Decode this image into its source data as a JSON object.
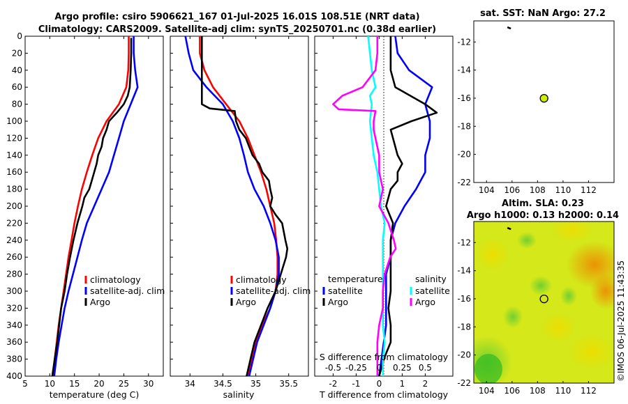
{
  "header": {
    "title_line1": "Argo profile: csiro 5906621_167 01-Jul-2025 16.01S 108.51E (NRT data)",
    "title_line2": "Climatology: CARS2009. Satellite-adj clim: synTS_20250701.nc (0.38d earlier)"
  },
  "colors": {
    "climatology": "#ff0000",
    "satellite": "#0000ff",
    "argo": "#000000",
    "salinity_satellite": "#00ffff",
    "salinity_argo": "#ff00ff",
    "marker": "#ccee00"
  },
  "chart_data": [
    {
      "id": "temperature",
      "type": "line",
      "xlabel": "temperature (deg C)",
      "ylabel": "depth",
      "xlim": [
        5,
        33
      ],
      "ylim": [
        400,
        0
      ],
      "xticks": [
        "5",
        "10",
        "15",
        "20",
        "25",
        "30"
      ],
      "yticks": [
        "0",
        "20",
        "40",
        "60",
        "80",
        "100",
        "120",
        "140",
        "160",
        "180",
        "200",
        "220",
        "240",
        "260",
        "280",
        "300",
        "320",
        "340",
        "360",
        "380",
        "400"
      ],
      "legend": [
        "climatology",
        "satellite-adj. clim",
        "Argo"
      ],
      "series": [
        {
          "name": "climatology",
          "depth": [
            0,
            20,
            40,
            60,
            80,
            100,
            120,
            140,
            160,
            180,
            200,
            220,
            240,
            260,
            280,
            300,
            320,
            340,
            360,
            380,
            400
          ],
          "values": [
            26.0,
            26.0,
            25.9,
            25.5,
            24.0,
            21.5,
            19.8,
            18.6,
            17.5,
            16.5,
            15.7,
            15.0,
            14.4,
            13.8,
            13.3,
            12.8,
            12.3,
            11.8,
            11.4,
            11.0,
            10.7
          ]
        },
        {
          "name": "satellite-adj. clim",
          "depth": [
            0,
            20,
            40,
            60,
            80,
            100,
            120,
            140,
            160,
            180,
            200,
            220,
            240,
            260,
            280,
            300,
            320,
            340,
            360,
            380,
            400
          ],
          "values": [
            27.0,
            27.0,
            27.3,
            27.8,
            26.4,
            25.0,
            24.0,
            23.0,
            22.0,
            20.5,
            19.0,
            17.5,
            16.5,
            15.6,
            14.7,
            13.8,
            13.0,
            12.4,
            11.8,
            11.3,
            10.9
          ]
        },
        {
          "name": "Argo",
          "depth": [
            2,
            20,
            40,
            60,
            70,
            80,
            90,
            100,
            110,
            120,
            130,
            140,
            150,
            160,
            170,
            180,
            190,
            200,
            220,
            240,
            260,
            280,
            300,
            320,
            340,
            360,
            380,
            400
          ],
          "values": [
            26.5,
            26.5,
            26.4,
            26.2,
            25.8,
            25.0,
            23.6,
            22.0,
            21.5,
            20.8,
            20.5,
            19.8,
            19.5,
            19.0,
            18.5,
            18.0,
            17.0,
            16.6,
            15.6,
            14.8,
            14.1,
            13.5,
            13.0,
            12.3,
            11.9,
            11.5,
            11.0,
            10.5
          ]
        }
      ]
    },
    {
      "id": "salinity",
      "type": "line",
      "xlabel": "salinity",
      "xlim": [
        33.7,
        35.8
      ],
      "ylim": [
        400,
        0
      ],
      "xticks": [
        "34",
        "34.5",
        "35",
        "35.5"
      ],
      "legend": [
        "climatology",
        "satellite-adj. clim",
        "Argo"
      ],
      "series": [
        {
          "name": "climatology",
          "depth": [
            0,
            20,
            40,
            60,
            80,
            100,
            120,
            140,
            160,
            180,
            200,
            220,
            240,
            260,
            280,
            300,
            320,
            340,
            360,
            380,
            400
          ],
          "values": [
            34.15,
            34.15,
            34.22,
            34.35,
            34.55,
            34.75,
            34.88,
            34.98,
            35.08,
            35.16,
            35.22,
            35.28,
            35.31,
            35.33,
            35.33,
            35.3,
            35.22,
            35.1,
            35.0,
            34.94,
            34.88
          ]
        },
        {
          "name": "satellite-adj. clim",
          "depth": [
            0,
            20,
            40,
            60,
            80,
            100,
            120,
            140,
            160,
            180,
            200,
            220,
            240,
            260,
            280,
            300,
            320,
            340,
            360,
            380,
            400
          ],
          "values": [
            33.93,
            33.98,
            34.05,
            34.25,
            34.5,
            34.65,
            34.75,
            34.82,
            34.88,
            34.98,
            35.12,
            35.22,
            35.3,
            35.35,
            35.35,
            35.3,
            35.22,
            35.12,
            35.02,
            34.96,
            34.9
          ]
        },
        {
          "name": "Argo",
          "depth": [
            0,
            20,
            40,
            60,
            80,
            85,
            88,
            100,
            110,
            120,
            130,
            140,
            150,
            160,
            170,
            180,
            190,
            200,
            210,
            220,
            240,
            250,
            260,
            280,
            300,
            320,
            340,
            360,
            380,
            400
          ],
          "values": [
            34.18,
            34.18,
            34.18,
            34.18,
            34.18,
            34.3,
            34.68,
            34.7,
            34.75,
            34.85,
            34.9,
            34.95,
            35.05,
            35.1,
            35.2,
            35.22,
            35.25,
            35.22,
            35.3,
            35.4,
            35.45,
            35.48,
            35.46,
            35.38,
            35.3,
            35.18,
            35.08,
            34.98,
            34.92,
            34.86
          ]
        }
      ]
    },
    {
      "id": "differences",
      "type": "line",
      "xlabel": "T difference from climatology",
      "xlabel_top": "S difference from climatology",
      "xlim": [
        -2.8,
        3.2
      ],
      "ylim": [
        400,
        0
      ],
      "xticks": [
        "-2",
        "-1",
        "0",
        "1",
        "2"
      ],
      "s_xlim": [
        -0.7,
        0.8
      ],
      "s_xticks": [
        "-0.5",
        "-0.25",
        "0",
        "0.25",
        "0.5"
      ],
      "legend_left_title": "temperature",
      "legend_right_title": "salinity",
      "legend_left": [
        "satellite",
        "Argo"
      ],
      "legend_right": [
        "satellite",
        "Argo"
      ],
      "series": [
        {
          "name": "T satellite",
          "depth": [
            0,
            20,
            40,
            60,
            80,
            100,
            120,
            140,
            160,
            180,
            200,
            220,
            240,
            260,
            280,
            300,
            320,
            340,
            360,
            380,
            400
          ],
          "values": [
            0.7,
            0.8,
            1.3,
            2.3,
            2.0,
            2.2,
            2.2,
            2.0,
            2.0,
            1.6,
            1.1,
            0.7,
            0.5,
            0.5,
            0.3,
            0.3,
            0.3,
            0.3,
            0.2,
            0.1,
            0.0
          ]
        },
        {
          "name": "T Argo",
          "depth": [
            0,
            20,
            40,
            60,
            80,
            90,
            100,
            110,
            120,
            140,
            150,
            160,
            170,
            180,
            200,
            220,
            240,
            260,
            280,
            300,
            320,
            340,
            360,
            380,
            400
          ],
          "values": [
            0.5,
            0.5,
            0.5,
            0.7,
            2.0,
            2.5,
            1.4,
            0.5,
            0.6,
            0.8,
            1.0,
            0.8,
            0.8,
            0.5,
            0.3,
            0.6,
            0.5,
            0.5,
            0.5,
            0.5,
            0.4,
            0.5,
            0.5,
            0.2,
            0.0
          ]
        },
        {
          "name": "S satellite",
          "depth": [
            0,
            20,
            40,
            60,
            70,
            80,
            100,
            120,
            140,
            160,
            180,
            200,
            220,
            240,
            260,
            280,
            300,
            320,
            340,
            360,
            380,
            400
          ],
          "values": [
            -0.12,
            -0.1,
            -0.08,
            -0.04,
            -0.1,
            -0.08,
            -0.1,
            -0.08,
            -0.06,
            -0.02,
            0.0,
            0.02,
            0.06,
            0.04,
            0.04,
            0.04,
            0.04,
            0.04,
            0.04,
            0.06,
            0.04,
            0.04
          ]
        },
        {
          "name": "S Argo",
          "depth": [
            0,
            20,
            40,
            60,
            70,
            80,
            86,
            88,
            100,
            110,
            120,
            140,
            160,
            180,
            200,
            220,
            240,
            250,
            260,
            280,
            300,
            320,
            340,
            360,
            380,
            400
          ],
          "values": [
            -0.02,
            -0.02,
            -0.04,
            -0.18,
            -0.4,
            -0.5,
            -0.44,
            -0.04,
            -0.06,
            -0.06,
            -0.04,
            0.0,
            0.0,
            0.04,
            0.0,
            0.1,
            0.16,
            0.18,
            0.12,
            0.06,
            0.04,
            0.04,
            0.0,
            -0.02,
            -0.02,
            -0.02
          ]
        }
      ]
    },
    {
      "id": "sst_map",
      "type": "scatter",
      "title": "sat. SST: NaN Argo: 27.2",
      "xlim": [
        103,
        114
      ],
      "ylim": [
        -22,
        -10.5
      ],
      "xticks": [
        "104",
        "106",
        "108",
        "110",
        "112"
      ],
      "yticks": [
        "-12",
        "-14",
        "-16",
        "-18",
        "-20",
        "-22"
      ],
      "points": [
        {
          "lon": 108.51,
          "lat": -16.01
        }
      ],
      "track": [
        {
          "lon": 105.8,
          "lat": -11.0
        }
      ]
    },
    {
      "id": "sla_map",
      "type": "heatmap",
      "title_line1": "Altim. SLA: 0.23",
      "title_line2": "Argo h1000: 0.13 h2000: 0.14",
      "xlim": [
        103,
        114
      ],
      "ylim": [
        -22,
        -10.5
      ],
      "xticks": [
        "104",
        "106",
        "108",
        "110",
        "112"
      ],
      "yticks": [
        "-12",
        "-14",
        "-16",
        "-18",
        "-20",
        "-22"
      ],
      "points": [
        {
          "lon": 108.51,
          "lat": -16.01
        }
      ],
      "track": [
        {
          "lon": 105.8,
          "lat": -11.0
        }
      ]
    }
  ],
  "footer": {
    "timestamp": "©IMOS 06-Jul-2025 11:43:35"
  }
}
